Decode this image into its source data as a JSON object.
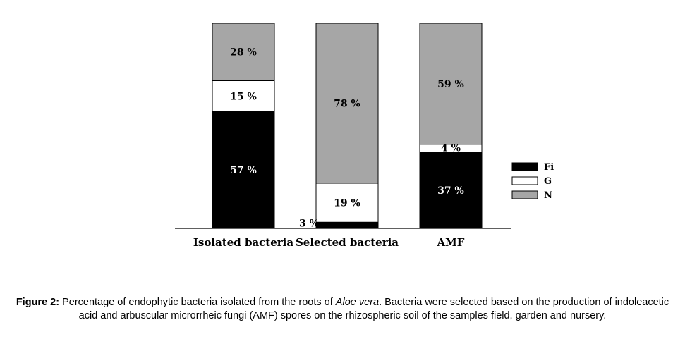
{
  "chart_data": {
    "type": "bar",
    "stacked": true,
    "categories": [
      "Isolated bacteria",
      "Selected bacteria",
      "AMF"
    ],
    "series": [
      {
        "name": "Fi",
        "values": [
          57,
          3,
          37
        ],
        "labels": [
          "57 %",
          "3 %",
          "37 %"
        ],
        "color": "#000000"
      },
      {
        "name": "G",
        "values": [
          15,
          19,
          4
        ],
        "labels": [
          "15 %",
          "19 %",
          "4 %"
        ],
        "color": "#ffffff"
      },
      {
        "name": "N",
        "values": [
          28,
          78,
          59
        ],
        "labels": [
          "28 %",
          "78 %",
          "59 %"
        ],
        "color": "#a6a6a6"
      }
    ],
    "ylim": [
      0,
      100
    ],
    "title": "",
    "xlabel": "",
    "ylabel": "",
    "legend_position": "right",
    "grid": false
  },
  "caption": {
    "figure_number": "Figure 2:",
    "text_before_italic": " Percentage of endophytic bacteria isolated from the roots of ",
    "italic_text": "Aloe vera",
    "text_after_italic": ". Bacteria were selected based on the production of indoleacetic acid and arbuscular microrrheic fungi (AMF) spores on the rhizospheric soil of the samples field, garden and nursery."
  }
}
